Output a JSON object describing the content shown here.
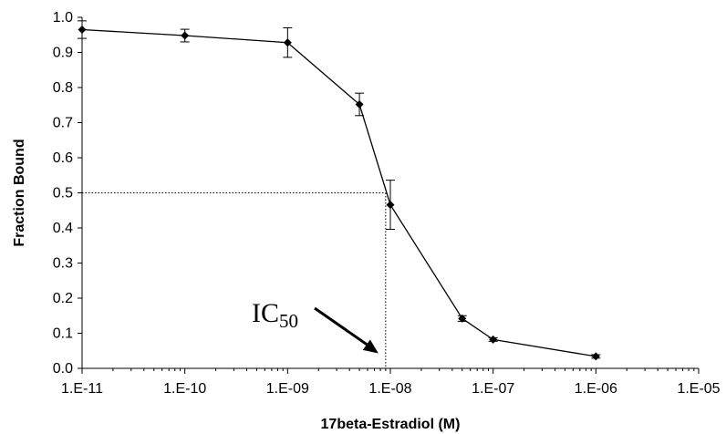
{
  "chart_data": {
    "type": "line",
    "xlabel": "17beta-Estradiol (M)",
    "ylabel": "Fraction Bound",
    "x_scale": "log",
    "xlim": [
      1e-11,
      1e-05
    ],
    "ylim": [
      0,
      1.0
    ],
    "x_ticks": [
      1e-11,
      1e-10,
      1e-09,
      1e-08,
      1e-07,
      1e-06,
      1e-05
    ],
    "x_tick_labels": [
      "1.E-11",
      "1.E-10",
      "1.E-09",
      "1.E-08",
      "1.E-07",
      "1.E-06",
      "1.E-05"
    ],
    "y_ticks": [
      0,
      0.1,
      0.2,
      0.3,
      0.4,
      0.5,
      0.6,
      0.7,
      0.8,
      0.9,
      1.0
    ],
    "y_tick_labels": [
      "0.0",
      "0.1",
      "0.2",
      "0.3",
      "0.4",
      "0.5",
      "0.6",
      "0.7",
      "0.8",
      "0.9",
      "1.0"
    ],
    "grid": false,
    "legend": "none",
    "series": [
      {
        "x": [
          1e-11,
          1e-10,
          1e-09,
          5e-09,
          1e-08,
          5e-08,
          1e-07,
          1e-06
        ],
        "y": [
          0.965,
          0.948,
          0.928,
          0.752,
          0.466,
          0.142,
          0.082,
          0.034
        ],
        "error": [
          0.025,
          0.018,
          0.042,
          0.032,
          0.07,
          0.008,
          0.005,
          0.005
        ],
        "color": "#000000",
        "marker": "diamond"
      }
    ],
    "annotations": [
      {
        "text": "IC",
        "subscript": "50",
        "arrow_to_x": 9e-09,
        "arrow_to_y": 0.03
      }
    ],
    "reference_lines": {
      "y": 0.5,
      "x": 9e-09,
      "style": "dotted"
    }
  }
}
